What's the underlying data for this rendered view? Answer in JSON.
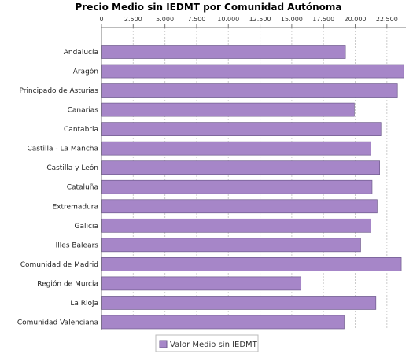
{
  "chart_data": {
    "type": "bar",
    "orientation": "horizontal",
    "title": "Precio Medio sin IEDMT por Comunidad Autónoma",
    "xlabel": "",
    "ylabel": "",
    "xlim": [
      0,
      24000
    ],
    "x_ticks": [
      0,
      2500,
      5000,
      7500,
      10000,
      12500,
      15000,
      17500,
      20000,
      22500
    ],
    "x_tick_labels": [
      "0",
      "2.500",
      "5.000",
      "7.500",
      "10.000",
      "12.500",
      "15.000",
      "17.500",
      "20.000",
      "22.500"
    ],
    "x_axis_position": "top",
    "grid": true,
    "legend_position": "bottom",
    "categories": [
      "Andalucía",
      "Aragón",
      "Principado de Asturias",
      "Canarias",
      "Cantabria",
      "Castilla - La Mancha",
      "Castilla y León",
      "Cataluña",
      "Extremadura",
      "Galicia",
      "Illes Balears",
      "Comunidad de Madrid",
      "Región de Murcia",
      "La Rioja",
      "Comunidad Valenciana"
    ],
    "series": [
      {
        "name": "Valor Medio sin IEDMT",
        "color": "#a686c8",
        "values": [
          19200,
          23800,
          23300,
          19900,
          22000,
          21200,
          21900,
          21300,
          21700,
          21200,
          20400,
          23600,
          15700,
          21600,
          19100
        ]
      }
    ]
  }
}
